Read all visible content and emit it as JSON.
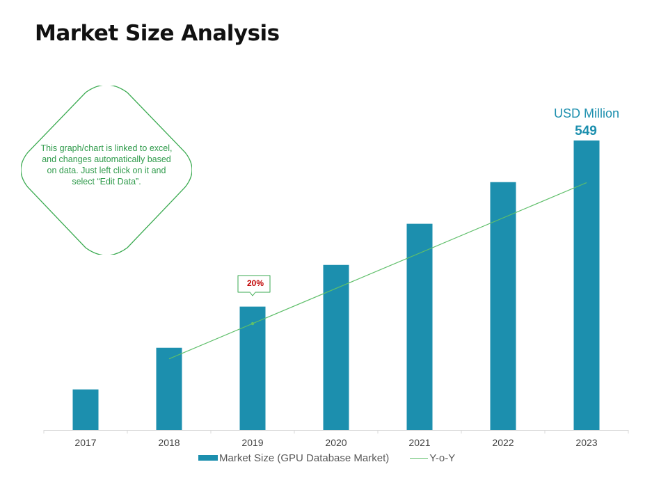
{
  "title": "Market Size Analysis",
  "note": {
    "text": "This graph/chart is linked to excel, and changes automatically based on data. Just left click on it and select “Edit Data”."
  },
  "unit_label": "USD Million",
  "last_value_label": "549",
  "callout": {
    "text": "20%",
    "category": "2019"
  },
  "colors": {
    "bar": "#1c8fae",
    "line": "#5fbf6a",
    "note_border": "#3aaa50",
    "callout_text": "#c00000"
  },
  "legend": {
    "bar_label": "Market Size (GPU Database Market)",
    "line_label": "Y-o-Y"
  },
  "chart_data": {
    "type": "bar",
    "categories": [
      "2017",
      "2018",
      "2019",
      "2020",
      "2021",
      "2022",
      "2023"
    ],
    "series": [
      {
        "name": "Market Size (GPU Database Market)",
        "type": "bar",
        "values": [
          77,
          156,
          234,
          313,
          391,
          470,
          549
        ]
      },
      {
        "name": "Y-o-Y",
        "type": "line",
        "x": [
          "2018",
          "2023"
        ],
        "values": [
          135,
          469
        ]
      }
    ],
    "ylim": [
      0,
      600
    ],
    "grid": false,
    "legend_position": "bottom"
  }
}
